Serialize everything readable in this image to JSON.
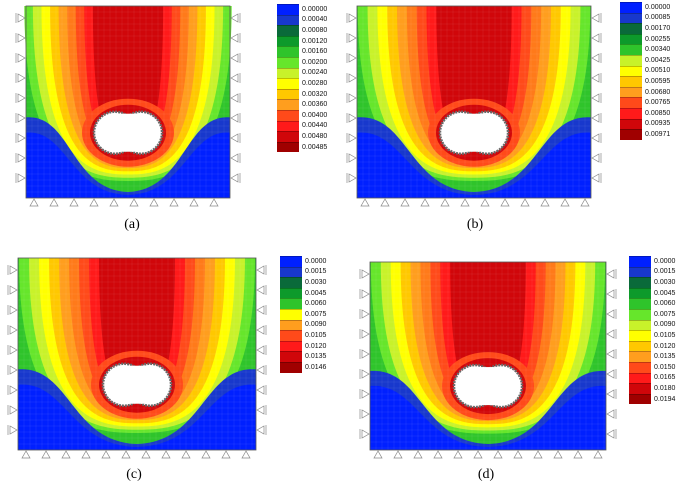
{
  "panels": [
    {
      "caption": "(a)",
      "legend_values": [
        "0.00000",
        "0.00040",
        "0.00080",
        "0.00120",
        "0.00160",
        "0.00200",
        "0.00240",
        "0.00280",
        "0.00320",
        "0.00360",
        "0.00400",
        "0.00440",
        "0.00480",
        "0.00485"
      ],
      "legend_colors": [
        "#0020ff",
        "#1838cc",
        "#0a6a3a",
        "#0d9a2b",
        "#2fc42b",
        "#66e62b",
        "#c8f22a",
        "#ffff00",
        "#ffc800",
        "#ff9e1e",
        "#ff4a1a",
        "#ff1a1a",
        "#d0060a",
        "#a00000"
      ]
    },
    {
      "caption": "(b)",
      "legend_values": [
        "0.00000",
        "0.00085",
        "0.00170",
        "0.00255",
        "0.00340",
        "0.00425",
        "0.00510",
        "0.00595",
        "0.00680",
        "0.00765",
        "0.00850",
        "0.00935",
        "0.00971"
      ],
      "legend_colors": [
        "#0020ff",
        "#1838cc",
        "#0a6a3a",
        "#0d9a2b",
        "#2fc42b",
        "#c8f22a",
        "#ffff00",
        "#ffc800",
        "#ff9e1e",
        "#ff4a1a",
        "#ff1a1a",
        "#d0060a",
        "#a00000"
      ]
    },
    {
      "caption": "(c)",
      "legend_values": [
        "0.0000",
        "0.0015",
        "0.0030",
        "0.0045",
        "0.0060",
        "0.0075",
        "0.0090",
        "0.0105",
        "0.0120",
        "0.0135",
        "0.0146"
      ],
      "legend_colors": [
        "#0020ff",
        "#1838cc",
        "#0a6a3a",
        "#0d9a2b",
        "#2fc42b",
        "#ffff00",
        "#ff9e1e",
        "#ff4a1a",
        "#ff1a1a",
        "#d0060a",
        "#a00000"
      ]
    },
    {
      "caption": "(d)",
      "legend_values": [
        "0.0000",
        "0.0015",
        "0.0030",
        "0.0045",
        "0.0060",
        "0.0075",
        "0.0090",
        "0.0105",
        "0.0120",
        "0.0135",
        "0.0150",
        "0.0165",
        "0.0180",
        "0.0194"
      ],
      "legend_colors": [
        "#0020ff",
        "#1838cc",
        "#0a6a3a",
        "#0d9a2b",
        "#2fc42b",
        "#66e62b",
        "#c8f22a",
        "#ffff00",
        "#ffc800",
        "#ff9e1e",
        "#ff4a1a",
        "#ff1a1a",
        "#d0060a",
        "#a00000"
      ]
    }
  ]
}
